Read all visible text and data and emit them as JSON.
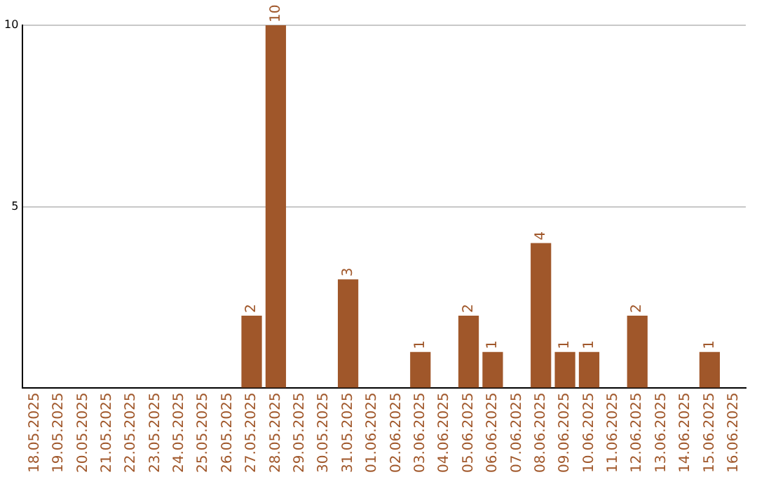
{
  "chart_data": {
    "type": "bar",
    "categories": [
      "18.05.2025",
      "19.05.2025",
      "20.05.2025",
      "21.05.2025",
      "22.05.2025",
      "23.05.2025",
      "24.05.2025",
      "25.05.2025",
      "26.05.2025",
      "27.05.2025",
      "28.05.2025",
      "29.05.2025",
      "30.05.2025",
      "31.05.2025",
      "01.06.2025",
      "02.06.2025",
      "03.06.2025",
      "04.06.2025",
      "05.06.2025",
      "06.06.2025",
      "07.06.2025",
      "08.06.2025",
      "09.06.2025",
      "10.06.2025",
      "11.06.2025",
      "12.06.2025",
      "13.06.2025",
      "14.06.2025",
      "15.06.2025",
      "16.06.2025"
    ],
    "values": [
      0,
      0,
      0,
      0,
      0,
      0,
      0,
      0,
      0,
      2,
      10,
      0,
      0,
      3,
      0,
      0,
      1,
      0,
      2,
      1,
      0,
      4,
      1,
      1,
      0,
      2,
      0,
      0,
      1,
      0
    ],
    "value_labels": [
      null,
      null,
      null,
      null,
      null,
      null,
      null,
      null,
      null,
      "2",
      "10",
      null,
      null,
      "3",
      null,
      null,
      "1",
      null,
      "2",
      "1",
      null,
      "4",
      "1",
      "1",
      null,
      "2",
      null,
      null,
      "1",
      null
    ],
    "color": "#a0572a",
    "ylim": [
      0,
      10
    ],
    "yticks": [
      {
        "value": 0,
        "label": null
      },
      5,
      10
    ],
    "grid": "y",
    "legend": false
  }
}
